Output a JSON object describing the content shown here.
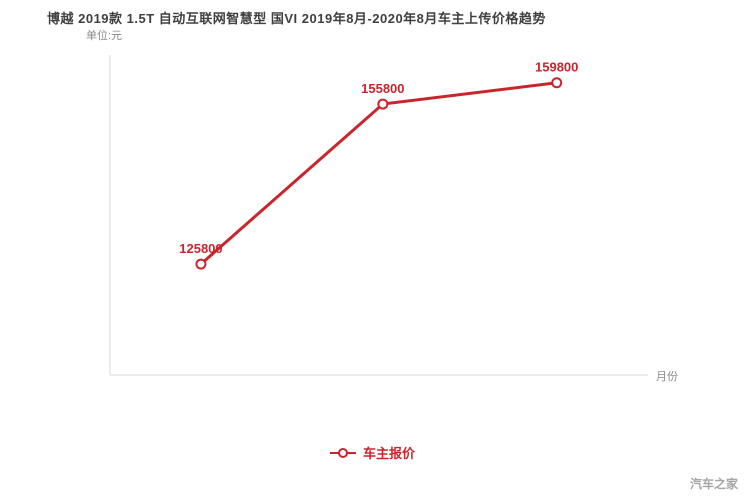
{
  "chart_data": {
    "type": "line",
    "title": "博越 2019款 1.5T 自动互联网智慧型 国VI 2019年8月-2020年8月车主上传价格趋势",
    "unit_label": "单位:元",
    "xlabel": "月份",
    "ylim": [
      105000,
      165000
    ],
    "grid": false,
    "legend_position": "bottom-center",
    "accent_color": "#c9252d",
    "axis_color": "#d9d9d9",
    "series": [
      {
        "name": "车主报价",
        "color": "#c9252d",
        "points": [
          {
            "x_frac": 0.17,
            "value": 125800,
            "label": "125800"
          },
          {
            "x_frac": 0.51,
            "value": 155800,
            "label": "155800"
          },
          {
            "x_frac": 0.835,
            "value": 159800,
            "label": "159800"
          }
        ]
      }
    ]
  },
  "footer": {
    "watermark": "汽车之家"
  }
}
